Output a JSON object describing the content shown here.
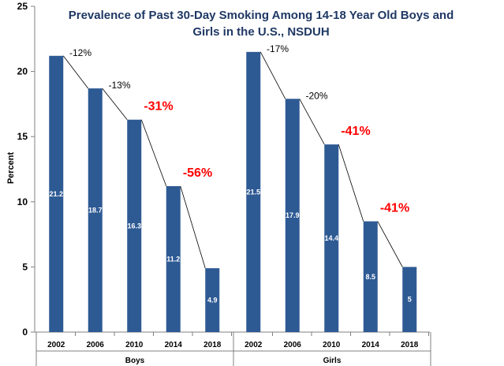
{
  "chart_data": {
    "type": "bar",
    "title_line1": "Prevalence of Past 30-Day Smoking Among 14-18 Year Old Boys and",
    "title_line2": "Girls in the U.S., NSDUH",
    "ylabel": "Percent",
    "ylim": [
      0,
      25
    ],
    "yticks": [
      "0",
      "5",
      "10",
      "15",
      "20",
      "25"
    ],
    "bar_color": "#2e5a94",
    "groups": [
      {
        "name": "Boys",
        "categories": [
          "2002",
          "2006",
          "2010",
          "2014",
          "2018"
        ],
        "values": [
          21.2,
          18.7,
          16.3,
          11.2,
          4.9
        ],
        "labels": [
          "21.2",
          "18.7",
          "16.3",
          "11.2",
          "4.9"
        ],
        "changes": [
          {
            "text": "-12%",
            "style": "small"
          },
          {
            "text": "-13%",
            "style": "small"
          },
          {
            "text": "-31%",
            "style": "big"
          },
          {
            "text": "-56%",
            "style": "big"
          }
        ]
      },
      {
        "name": "Girls",
        "categories": [
          "2002",
          "2006",
          "2010",
          "2014",
          "2018"
        ],
        "values": [
          21.5,
          17.9,
          14.4,
          8.5,
          5
        ],
        "labels": [
          "21.5",
          "17.9",
          "14.4",
          "8.5",
          "5"
        ],
        "changes": [
          {
            "text": "-17%",
            "style": "small"
          },
          {
            "text": "-20%",
            "style": "small"
          },
          {
            "text": "-41%",
            "style": "big"
          },
          {
            "text": "-41%",
            "style": "big"
          }
        ]
      }
    ]
  }
}
